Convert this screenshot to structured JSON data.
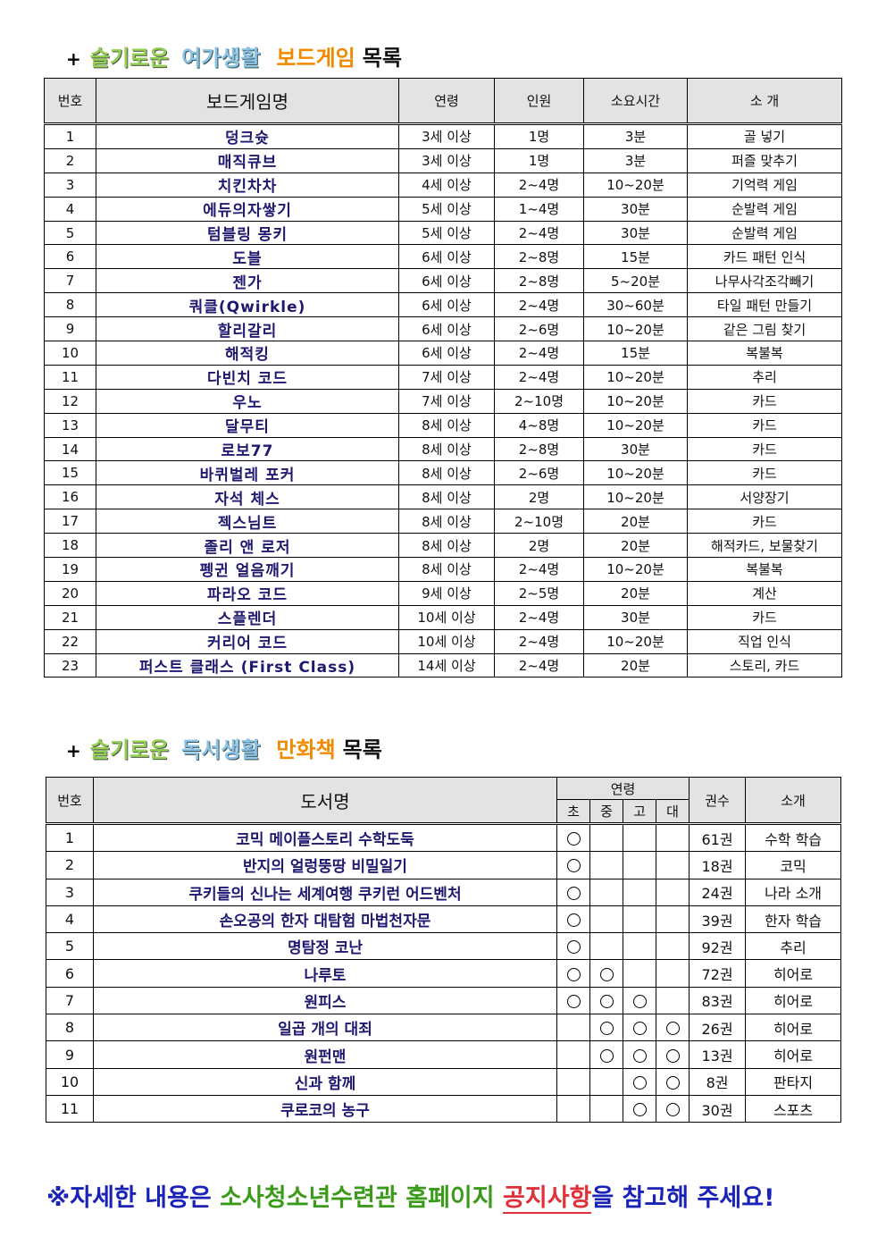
{
  "board_section": {
    "plus": "+",
    "word1": "슬기로운",
    "word2": "여가생활",
    "word3": "보드게임",
    "word4": "목록"
  },
  "board_table": {
    "headers": [
      "번호",
      "보드게임명",
      "연령",
      "인원",
      "소요시간",
      "소 개"
    ],
    "rows": [
      [
        "1",
        "덩크슛",
        "3세 이상",
        "1명",
        "3분",
        "골 넣기"
      ],
      [
        "2",
        "매직큐브",
        "3세 이상",
        "1명",
        "3분",
        "퍼즐 맞추기"
      ],
      [
        "3",
        "치킨차차",
        "4세 이상",
        "2~4명",
        "10~20분",
        "기억력 게임"
      ],
      [
        "4",
        "에듀의자쌓기",
        "5세 이상",
        "1~4명",
        "30분",
        "순발력 게임"
      ],
      [
        "5",
        "텀블링 몽키",
        "5세 이상",
        "2~4명",
        "30분",
        "순발력 게임"
      ],
      [
        "6",
        "도블",
        "6세 이상",
        "2~8명",
        "15분",
        "카드 패턴 인식"
      ],
      [
        "7",
        "젠가",
        "6세 이상",
        "2~8명",
        "5~20분",
        "나무사각조각빼기"
      ],
      [
        "8",
        "쿼클(Qwirkle)",
        "6세 이상",
        "2~4명",
        "30~60분",
        "타일 패턴 만들기"
      ],
      [
        "9",
        "할리갈리",
        "6세 이상",
        "2~6명",
        "10~20분",
        "같은 그림 찾기"
      ],
      [
        "10",
        "해적킹",
        "6세 이상",
        "2~4명",
        "15분",
        "복불복"
      ],
      [
        "11",
        "다빈치 코드",
        "7세 이상",
        "2~4명",
        "10~20분",
        "추리"
      ],
      [
        "12",
        "우노",
        "7세 이상",
        "2~10명",
        "10~20분",
        "카드"
      ],
      [
        "13",
        "달무티",
        "8세 이상",
        "4~8명",
        "10~20분",
        "카드"
      ],
      [
        "14",
        "로보77",
        "8세 이상",
        "2~8명",
        "30분",
        "카드"
      ],
      [
        "15",
        "바퀴벌레 포커",
        "8세 이상",
        "2~6명",
        "10~20분",
        "카드"
      ],
      [
        "16",
        "자석 체스",
        "8세 이상",
        "2명",
        "10~20분",
        "서양장기"
      ],
      [
        "17",
        "젝스님트",
        "8세 이상",
        "2~10명",
        "20분",
        "카드"
      ],
      [
        "18",
        "졸리 앤 로저",
        "8세 이상",
        "2명",
        "20분",
        "해적카드, 보물찾기"
      ],
      [
        "19",
        "펭귄 얼음깨기",
        "8세 이상",
        "2~4명",
        "10~20분",
        "복불복"
      ],
      [
        "20",
        "파라오 코드",
        "9세 이상",
        "2~5명",
        "20분",
        "계산"
      ],
      [
        "21",
        "스플렌더",
        "10세 이상",
        "2~4명",
        "30분",
        "카드"
      ],
      [
        "22",
        "커리어 코드",
        "10세 이상",
        "2~4명",
        "10~20분",
        "직업 인식"
      ],
      [
        "23",
        "퍼스트 클래스 (First Class)",
        "14세 이상",
        "2~4명",
        "20분",
        "스토리, 카드"
      ]
    ]
  },
  "comic_section": {
    "plus": "+",
    "word1": "슬기로운",
    "word2": "독서생활",
    "word3": "만화책",
    "word4": "목록"
  },
  "comic_table": {
    "headers": {
      "no": "번호",
      "title": "도서명",
      "age": "연령",
      "age_levels": [
        "초",
        "중",
        "고",
        "대"
      ],
      "volumes": "권수",
      "intro": "소개"
    },
    "rows": [
      {
        "no": "1",
        "title": "코믹 메이플스토리 수학도둑",
        "ages": [
          true,
          false,
          false,
          false
        ],
        "volumes": "61권",
        "intro": "수학 학습"
      },
      {
        "no": "2",
        "title": "반지의 얼렁뚱땅 비밀일기",
        "ages": [
          true,
          false,
          false,
          false
        ],
        "volumes": "18권",
        "intro": "코믹"
      },
      {
        "no": "3",
        "title": "쿠키들의 신나는 세계여행 쿠키런 어드벤처",
        "ages": [
          true,
          false,
          false,
          false
        ],
        "volumes": "24권",
        "intro": "나라 소개"
      },
      {
        "no": "4",
        "title": "손오공의 한자 대탐험 마법천자문",
        "ages": [
          true,
          false,
          false,
          false
        ],
        "volumes": "39권",
        "intro": "한자 학습"
      },
      {
        "no": "5",
        "title": "명탐정 코난",
        "ages": [
          true,
          false,
          false,
          false
        ],
        "volumes": "92권",
        "intro": "추리"
      },
      {
        "no": "6",
        "title": "나루토",
        "ages": [
          true,
          true,
          false,
          false
        ],
        "volumes": "72권",
        "intro": "히어로"
      },
      {
        "no": "7",
        "title": "원피스",
        "ages": [
          true,
          true,
          true,
          false
        ],
        "volumes": "83권",
        "intro": "히어로"
      },
      {
        "no": "8",
        "title": "일곱 개의 대죄",
        "ages": [
          false,
          true,
          true,
          true
        ],
        "volumes": "26권",
        "intro": "히어로"
      },
      {
        "no": "9",
        "title": "원펀맨",
        "ages": [
          false,
          true,
          true,
          true
        ],
        "volumes": "13권",
        "intro": "히어로"
      },
      {
        "no": "10",
        "title": "신과 함께",
        "ages": [
          false,
          false,
          true,
          true
        ],
        "volumes": "8권",
        "intro": "판타지"
      },
      {
        "no": "11",
        "title": "쿠로코의 농구",
        "ages": [
          false,
          false,
          true,
          true
        ],
        "volumes": "30권",
        "intro": "스포츠"
      }
    ]
  },
  "footer": {
    "part1": "※자세한 내용은 ",
    "part2": "소사청소년수련관",
    "part3": " ",
    "part4": "홈페이지",
    "part5": " ",
    "part6": "공지사항",
    "part7": "을 참고해 주세요!"
  },
  "colors": {
    "name_text": "#1f1a70",
    "header_bg": "#e3e3e3",
    "green": "#92d050",
    "sky": "#8ec3e8",
    "orange": "#f08a00",
    "footer_blue": "#1a22b8",
    "footer_green": "#3a9a1a",
    "footer_red": "#e0303a"
  }
}
